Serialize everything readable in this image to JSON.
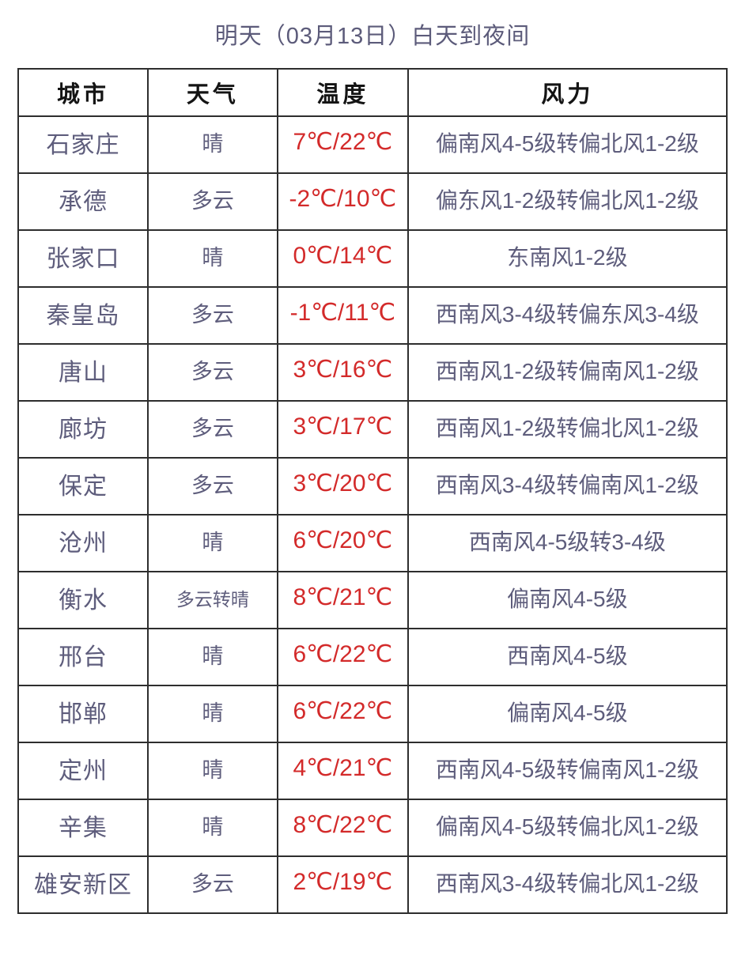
{
  "page": {
    "title": "明天（03月13日）白天到夜间"
  },
  "colors": {
    "title_text": "#5c5b7a",
    "body_text": "#5e5d7c",
    "temperature_text": "#d32a2a",
    "header_text": "#141414",
    "border": "#2e2e2e",
    "background": "#ffffff"
  },
  "table": {
    "headers": [
      "城市",
      "天气",
      "温度",
      "风力"
    ],
    "rows": [
      {
        "city": "石家庄",
        "weather": "晴",
        "temp": "7℃/22℃",
        "wind": "偏南风4-5级转偏北风1-2级"
      },
      {
        "city": "承德",
        "weather": "多云",
        "temp": "-2℃/10℃",
        "wind": "偏东风1-2级转偏北风1-2级"
      },
      {
        "city": "张家口",
        "weather": "晴",
        "temp": "0℃/14℃",
        "wind": "东南风1-2级"
      },
      {
        "city": "秦皇岛",
        "weather": "多云",
        "temp": "-1℃/11℃",
        "wind": "西南风3-4级转偏东风3-4级"
      },
      {
        "city": "唐山",
        "weather": "多云",
        "temp": "3℃/16℃",
        "wind": "西南风1-2级转偏南风1-2级"
      },
      {
        "city": "廊坊",
        "weather": "多云",
        "temp": "3℃/17℃",
        "wind": "西南风1-2级转偏北风1-2级"
      },
      {
        "city": "保定",
        "weather": "多云",
        "temp": "3℃/20℃",
        "wind": "西南风3-4级转偏南风1-2级"
      },
      {
        "city": "沧州",
        "weather": "晴",
        "temp": "6℃/20℃",
        "wind": "西南风4-5级转3-4级"
      },
      {
        "city": "衡水",
        "weather": "多云转晴",
        "temp": "8℃/21℃",
        "wind": "偏南风4-5级"
      },
      {
        "city": "邢台",
        "weather": "晴",
        "temp": "6℃/22℃",
        "wind": "西南风4-5级"
      },
      {
        "city": "邯郸",
        "weather": "晴",
        "temp": "6℃/22℃",
        "wind": "偏南风4-5级"
      },
      {
        "city": "定州",
        "weather": "晴",
        "temp": "4℃/21℃",
        "wind": "西南风4-5级转偏南风1-2级"
      },
      {
        "city": "辛集",
        "weather": "晴",
        "temp": "8℃/22℃",
        "wind": "偏南风4-5级转偏北风1-2级"
      },
      {
        "city": "雄安新区",
        "weather": "多云",
        "temp": "2℃/19℃",
        "wind": "西南风3-4级转偏北风1-2级"
      }
    ]
  }
}
